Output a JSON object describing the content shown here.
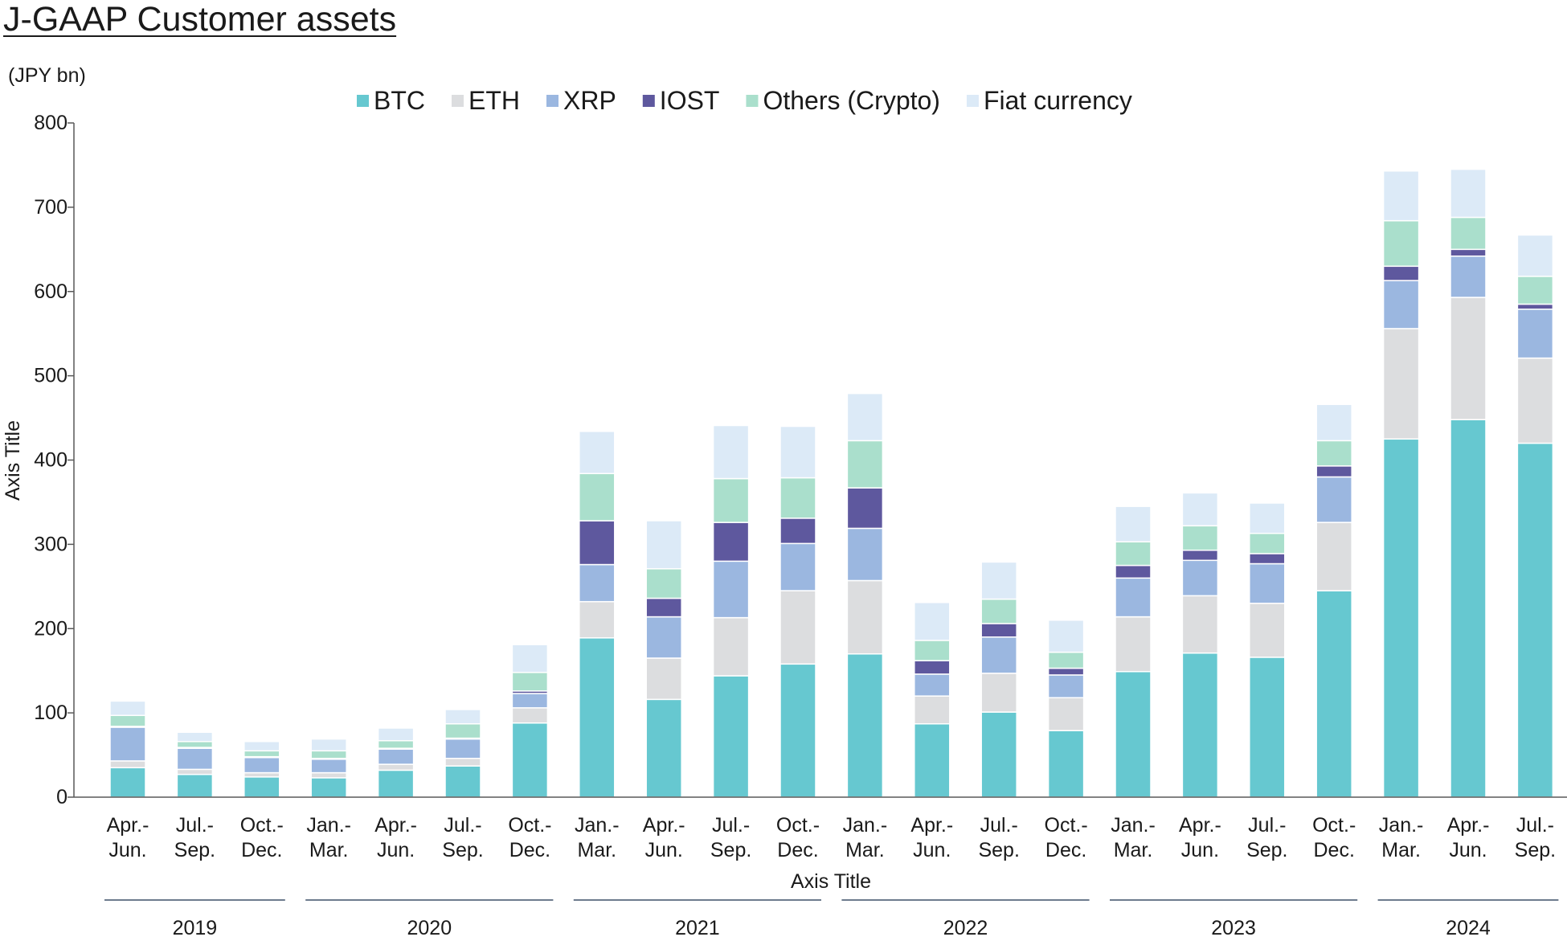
{
  "title": "J-GAAP Customer assets",
  "unit_label": "(JPY bn)",
  "chart_data": {
    "type": "bar",
    "stacked": true,
    "xlabel": "Axis Title",
    "ylabel": "Axis Title",
    "ylim": [
      0,
      800
    ],
    "yticks": [
      0,
      100,
      200,
      300,
      400,
      500,
      600,
      700,
      800
    ],
    "grid": false,
    "legend_position": "top",
    "categories": [
      [
        "Apr.-",
        "Jun."
      ],
      [
        "Jul.-",
        "Sep."
      ],
      [
        "Oct.-",
        "Dec."
      ],
      [
        "Jan.-",
        "Mar."
      ],
      [
        "Apr.-",
        "Jun."
      ],
      [
        "Jul.-",
        "Sep."
      ],
      [
        "Oct.-",
        "Dec."
      ],
      [
        "Jan.-",
        "Mar."
      ],
      [
        "Apr.-",
        "Jun."
      ],
      [
        "Jul.-",
        "Sep."
      ],
      [
        "Oct.-",
        "Dec."
      ],
      [
        "Jan.-",
        "Mar."
      ],
      [
        "Apr.-",
        "Jun."
      ],
      [
        "Jul.-",
        "Sep."
      ],
      [
        "Oct.-",
        "Dec."
      ],
      [
        "Jan.-",
        "Mar."
      ],
      [
        "Apr.-",
        "Jun."
      ],
      [
        "Jul.-",
        "Sep."
      ],
      [
        "Oct.-",
        "Dec."
      ],
      [
        "Jan.-",
        "Mar."
      ],
      [
        "Apr.-",
        "Jun."
      ],
      [
        "Jul.-",
        "Sep."
      ]
    ],
    "year_groups": [
      {
        "label": "2019",
        "count": 3
      },
      {
        "label": "2020",
        "count": 4
      },
      {
        "label": "2021",
        "count": 4
      },
      {
        "label": "2022",
        "count": 4
      },
      {
        "label": "2023",
        "count": 4
      },
      {
        "label": "2024",
        "count": 3
      }
    ],
    "series": [
      {
        "name": "BTC",
        "color": "#66c8d0",
        "values": [
          35,
          27,
          24,
          23,
          32,
          37,
          88,
          189,
          116,
          144,
          158,
          170,
          87,
          101,
          79,
          149,
          171,
          166,
          245,
          425,
          448,
          420
        ]
      },
      {
        "name": "ETH",
        "color": "#dcdddf",
        "values": [
          8,
          6,
          5,
          6,
          7,
          9,
          18,
          43,
          49,
          69,
          87,
          87,
          33,
          46,
          39,
          65,
          68,
          64,
          81,
          131,
          145,
          101
        ]
      },
      {
        "name": "XRP",
        "color": "#9bb7e0",
        "values": [
          40,
          25,
          18,
          16,
          18,
          23,
          17,
          44,
          49,
          67,
          56,
          62,
          26,
          43,
          27,
          46,
          42,
          47,
          54,
          57,
          49,
          58
        ]
      },
      {
        "name": "IOST",
        "color": "#5e589e",
        "values": [
          1,
          1,
          1,
          1,
          1,
          1,
          3,
          52,
          22,
          46,
          30,
          48,
          16,
          16,
          8,
          15,
          12,
          12,
          13,
          17,
          8,
          6
        ]
      },
      {
        "name": "Others (Crypto)",
        "color": "#aadfcc",
        "values": [
          13,
          7,
          7,
          9,
          9,
          17,
          22,
          56,
          35,
          52,
          48,
          56,
          24,
          29,
          19,
          28,
          29,
          24,
          30,
          54,
          38,
          33
        ]
      },
      {
        "name": "Fiat currency",
        "color": "#dceaf7",
        "values": [
          17,
          11,
          11,
          14,
          15,
          17,
          33,
          50,
          57,
          63,
          61,
          56,
          45,
          44,
          38,
          42,
          39,
          36,
          43,
          59,
          57,
          49
        ]
      }
    ]
  }
}
